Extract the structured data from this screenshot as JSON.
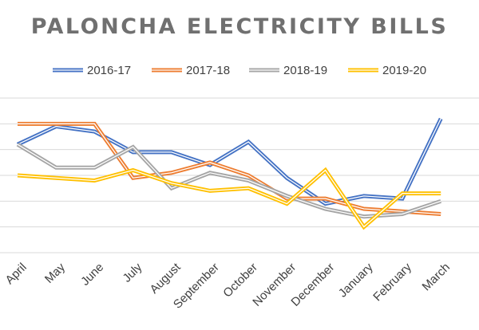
{
  "chart_data": {
    "type": "line",
    "title": "PALONCHA ELECTRICITY BILLS",
    "categories": [
      "April",
      "May",
      "June",
      "July",
      "August",
      "September",
      "October",
      "November",
      "December",
      "January",
      "February",
      "March"
    ],
    "series": [
      {
        "name": "2016-17",
        "color": "#4472C4",
        "values": [
          4.2,
          4.9,
          4.7,
          3.9,
          3.9,
          3.4,
          4.3,
          2.9,
          1.9,
          2.2,
          2.1,
          5.2
        ]
      },
      {
        "name": "2017-18",
        "color": "#ED7D31",
        "values": [
          5.0,
          5.0,
          5.0,
          2.9,
          3.1,
          3.5,
          3.0,
          2.1,
          2.1,
          1.7,
          1.6,
          1.5
        ]
      },
      {
        "name": "2018-19",
        "color": "#A5A5A5",
        "values": [
          4.2,
          3.3,
          3.3,
          4.1,
          2.5,
          3.1,
          2.8,
          2.2,
          1.7,
          1.4,
          1.5,
          2.0
        ]
      },
      {
        "name": "2019-20",
        "color": "#FFC000",
        "values": [
          3.0,
          2.9,
          2.8,
          3.2,
          2.7,
          2.4,
          2.5,
          1.9,
          3.2,
          1.0,
          2.3,
          2.3
        ]
      }
    ],
    "ylim": [
      0,
      6
    ],
    "legend_position": "top",
    "grid": true
  }
}
